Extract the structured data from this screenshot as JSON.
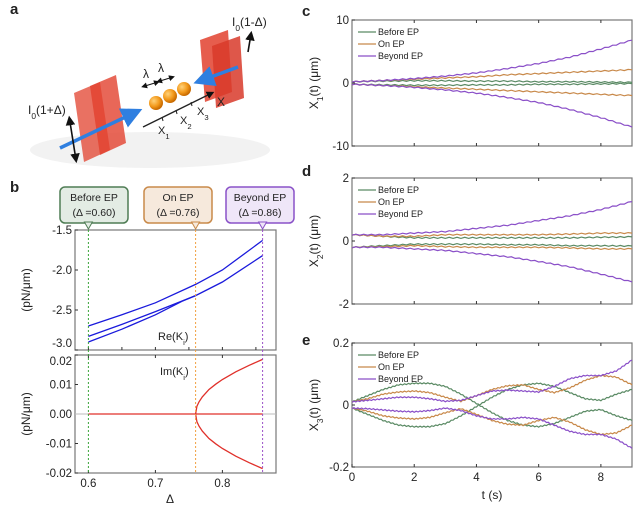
{
  "panel_letters": {
    "a": "a",
    "b": "b",
    "c": "c",
    "d": "d",
    "e": "e"
  },
  "panel_a": {
    "left_intensity": {
      "main": "I",
      "sub": "0",
      "rest": "(1+Δ)"
    },
    "right_intensity": {
      "main": "I",
      "sub": "0",
      "rest": "(1-Δ)"
    },
    "spacing_labels": [
      "λ",
      "λ"
    ],
    "positions": [
      {
        "main": "X",
        "sub": "1"
      },
      {
        "main": "X",
        "sub": "2"
      },
      {
        "main": "X",
        "sub": "3"
      }
    ],
    "axis_label": "X",
    "colors": {
      "plane": "#e2412e",
      "beam": "#2f7fe0",
      "particle": "#f39a1c"
    }
  },
  "panel_b": {
    "callouts": [
      {
        "title": "Before EP",
        "value": "(Δ =0.60)",
        "delta": 0.6,
        "border": "#4f7d55",
        "fill": "#e3ece4",
        "line": "#3aa53a"
      },
      {
        "title": "On EP",
        "value": "(Δ =0.76)",
        "delta": 0.76,
        "border": "#c98a4a",
        "fill": "#f6e9dc",
        "line": "#f0a040"
      },
      {
        "title": "Beyond EP",
        "value": "(Δ =0.86)",
        "delta": 0.86,
        "border": "#8a52c8",
        "fill": "#efe6f8",
        "line": "#9a50c8"
      }
    ]
  },
  "chart_data": [
    {
      "id": "b-re",
      "type": "line",
      "annotation": {
        "main": "Re(K",
        "sub": "i",
        "rest": ")"
      },
      "ylabel": "(pN/μm)",
      "xlim": [
        0.58,
        0.88
      ],
      "ylim": [
        -3.0,
        -1.5
      ],
      "yticks": [
        -1.5,
        -2.0,
        -2.5,
        -3.0
      ],
      "ytick_labels": [
        "-1.5",
        "-2.0",
        "-2.5",
        "-3.0"
      ],
      "color": "#1a1adc",
      "series": [
        {
          "x": [
            0.6,
            0.65,
            0.7,
            0.76,
            0.8,
            0.86
          ],
          "y": [
            -2.7,
            -2.56,
            -2.41,
            -2.18,
            -2.0,
            -1.63
          ]
        },
        {
          "x": [
            0.6,
            0.65,
            0.7,
            0.76,
            0.8,
            0.86
          ],
          "y": [
            -2.83,
            -2.68,
            -2.52,
            -2.32,
            -2.15,
            -1.82
          ]
        },
        {
          "x": [
            0.6,
            0.65,
            0.7,
            0.74,
            0.76
          ],
          "y": [
            -2.9,
            -2.74,
            -2.56,
            -2.39,
            -2.32
          ]
        }
      ]
    },
    {
      "id": "b-im",
      "type": "line",
      "annotation": {
        "main": "Im(K",
        "sub": "i",
        "rest": ")"
      },
      "xlabel": "Δ",
      "ylabel": "(pN/μm)",
      "xlim": [
        0.58,
        0.88
      ],
      "ylim": [
        -0.02,
        0.02
      ],
      "xticks": [
        0.6,
        0.7,
        0.8
      ],
      "xtick_labels": [
        "0.6",
        "0.7",
        "0.8"
      ],
      "yticks": [
        0.02,
        0.01,
        0.0,
        -0.01,
        -0.02
      ],
      "ytick_labels": [
        "0.02",
        "0.01",
        "0.00",
        "-0.01",
        "-0.02"
      ],
      "color": "#e0302a",
      "series": [
        {
          "x": [
            0.6,
            0.86
          ],
          "y": [
            0,
            0
          ]
        },
        {
          "x": [
            0.76,
            0.762,
            0.765,
            0.77,
            0.78,
            0.79,
            0.8,
            0.82,
            0.84,
            0.86
          ],
          "y": [
            0,
            0.0026,
            0.0041,
            0.0058,
            0.0083,
            0.0101,
            0.0117,
            0.0143,
            0.0165,
            0.0185
          ]
        },
        {
          "x": [
            0.76,
            0.762,
            0.765,
            0.77,
            0.78,
            0.79,
            0.8,
            0.82,
            0.84,
            0.86
          ],
          "y": [
            0,
            -0.0026,
            -0.0041,
            -0.0058,
            -0.0083,
            -0.0101,
            -0.0117,
            -0.0143,
            -0.0165,
            -0.0185
          ]
        }
      ]
    },
    {
      "id": "c",
      "type": "line",
      "ylabel": {
        "main": "X",
        "sub": "1",
        "rest": "(t) (μm)"
      },
      "xlim": [
        0,
        9
      ],
      "ylim": [
        -10,
        10
      ],
      "yticks": [
        10,
        0,
        -10
      ],
      "ytick_labels": [
        "10",
        "0",
        "-10"
      ],
      "xticks": [
        2,
        4,
        6,
        8
      ],
      "legend": {
        "position": "top-left",
        "entries": [
          "Before EP",
          "On EP",
          "Beyond EP"
        ]
      },
      "t": [
        0,
        1,
        2,
        3,
        4,
        5,
        6,
        7,
        8,
        9
      ],
      "series": [
        {
          "name": "Before EP",
          "color": "#5a8a64",
          "branches": [
            [
              0.2,
              0.3,
              0.35,
              0.35,
              0.3,
              0.3,
              0.2,
              0.2,
              0.15,
              0.1
            ],
            [
              -0.2,
              -0.3,
              -0.35,
              -0.35,
              -0.3,
              -0.3,
              -0.2,
              -0.2,
              -0.15,
              -0.1
            ]
          ]
        },
        {
          "name": "On EP",
          "color": "#c8894a",
          "branches": [
            [
              0.2,
              0.4,
              0.6,
              0.8,
              1.0,
              1.3,
              1.5,
              1.7,
              1.9,
              2.1
            ],
            [
              -0.2,
              -0.4,
              -0.6,
              -0.8,
              -1.0,
              -1.2,
              -1.4,
              -1.6,
              -1.8,
              -2.0
            ]
          ]
        },
        {
          "name": "Beyond EP",
          "color": "#8a4fc8",
          "branches": [
            [
              0.2,
              0.4,
              0.7,
              1.1,
              1.6,
              2.3,
              3.1,
              4.1,
              5.4,
              6.8
            ],
            [
              -0.2,
              -0.4,
              -0.7,
              -1.1,
              -1.6,
              -2.3,
              -3.1,
              -4.2,
              -5.5,
              -7.0
            ]
          ]
        }
      ]
    },
    {
      "id": "d",
      "type": "line",
      "ylabel": {
        "main": "X",
        "sub": "2",
        "rest": "(t) (μm)"
      },
      "xlim": [
        0,
        9
      ],
      "ylim": [
        -2,
        2
      ],
      "yticks": [
        2,
        0,
        -2
      ],
      "ytick_labels": [
        "2",
        "0",
        "-2"
      ],
      "xticks": [
        2,
        4,
        6,
        8
      ],
      "legend": {
        "position": "top-left",
        "entries": [
          "Before EP",
          "On EP",
          "Beyond EP"
        ]
      },
      "t": [
        0,
        1,
        2,
        3,
        4,
        5,
        6,
        7,
        8,
        9
      ],
      "series": [
        {
          "name": "Before EP",
          "color": "#5a8a64",
          "branches": [
            [
              0.2,
              0.15,
              0.1,
              0.1,
              0.1,
              0.1,
              0.1,
              0.1,
              0.12,
              0.13
            ],
            [
              -0.2,
              -0.15,
              -0.1,
              -0.1,
              -0.1,
              -0.12,
              -0.12,
              -0.15,
              -0.15,
              -0.16
            ]
          ]
        },
        {
          "name": "On EP",
          "color": "#c8894a",
          "branches": [
            [
              0.2,
              0.15,
              0.15,
              0.2,
              0.2,
              0.2,
              0.2,
              0.22,
              0.25,
              0.25
            ],
            [
              -0.2,
              -0.18,
              -0.15,
              -0.18,
              -0.2,
              -0.2,
              -0.2,
              -0.22,
              -0.25,
              -0.25
            ]
          ]
        },
        {
          "name": "Beyond EP",
          "color": "#8a4fc8",
          "branches": [
            [
              0.2,
              0.2,
              0.25,
              0.3,
              0.4,
              0.5,
              0.65,
              0.8,
              1.0,
              1.25
            ],
            [
              -0.2,
              -0.2,
              -0.25,
              -0.3,
              -0.4,
              -0.5,
              -0.65,
              -0.82,
              -1.05,
              -1.3
            ]
          ]
        }
      ]
    },
    {
      "id": "e",
      "type": "line",
      "xlabel": "t (s)",
      "ylabel": {
        "main": "X",
        "sub": "3",
        "rest": "(t) (μm)"
      },
      "xlim": [
        0,
        9
      ],
      "ylim": [
        -0.2,
        0.2
      ],
      "yticks": [
        0.2,
        0,
        -0.2
      ],
      "ytick_labels": [
        "0.2",
        "0",
        "-0.2"
      ],
      "xticks": [
        0,
        2,
        4,
        6,
        8
      ],
      "xtick_labels": [
        "0",
        "2",
        "4",
        "6",
        "8"
      ],
      "legend": {
        "position": "top-left",
        "entries": [
          "Before EP",
          "On EP",
          "Beyond EP"
        ]
      },
      "t": [
        0,
        0.5,
        1,
        1.5,
        2,
        2.5,
        3,
        3.5,
        4,
        4.5,
        5,
        5.5,
        6,
        6.5,
        7,
        7.5,
        8,
        8.5,
        9
      ],
      "series": [
        {
          "name": "Before EP",
          "color": "#5a8a64",
          "branches": [
            [
              0.01,
              0.03,
              0.05,
              0.065,
              0.07,
              0.07,
              0.06,
              0.035,
              0.005,
              -0.025,
              -0.05,
              -0.065,
              -0.07,
              -0.06,
              -0.04,
              -0.02,
              -0.015,
              -0.035,
              -0.05
            ],
            [
              -0.01,
              -0.03,
              -0.05,
              -0.065,
              -0.07,
              -0.07,
              -0.06,
              -0.035,
              -0.005,
              0.025,
              0.05,
              0.065,
              0.07,
              0.06,
              0.04,
              0.02,
              0.015,
              0.035,
              0.05
            ]
          ]
        },
        {
          "name": "On EP",
          "color": "#c8894a",
          "branches": [
            [
              0.01,
              0.02,
              0.035,
              0.042,
              0.045,
              0.04,
              0.025,
              0.012,
              0.03,
              0.05,
              0.062,
              0.065,
              0.05,
              0.04,
              0.055,
              0.08,
              0.095,
              0.09,
              0.065
            ],
            [
              -0.01,
              -0.02,
              -0.035,
              -0.042,
              -0.045,
              -0.04,
              -0.025,
              -0.012,
              -0.03,
              -0.05,
              -0.062,
              -0.065,
              -0.05,
              -0.04,
              -0.055,
              -0.08,
              -0.095,
              -0.09,
              -0.065
            ]
          ]
        },
        {
          "name": "Beyond EP",
          "color": "#8a4fc8",
          "branches": [
            [
              0.01,
              0.015,
              0.02,
              0.025,
              0.025,
              0.02,
              0.012,
              0.015,
              0.03,
              0.045,
              0.048,
              0.045,
              0.042,
              0.06,
              0.085,
              0.095,
              0.095,
              0.11,
              0.145
            ],
            [
              -0.01,
              -0.012,
              -0.016,
              -0.02,
              -0.022,
              -0.018,
              -0.01,
              -0.018,
              -0.035,
              -0.045,
              -0.045,
              -0.04,
              -0.045,
              -0.065,
              -0.085,
              -0.095,
              -0.095,
              -0.11,
              -0.14
            ]
          ]
        }
      ]
    }
  ]
}
